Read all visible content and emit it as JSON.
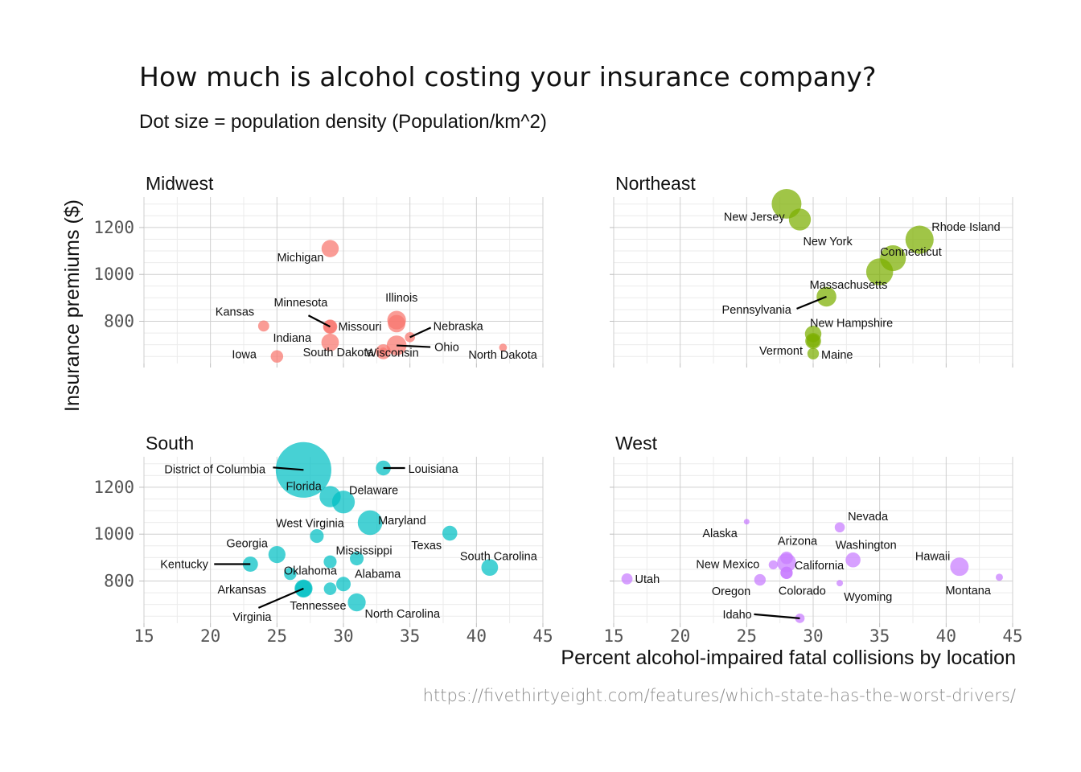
{
  "title": "How much is alcohol costing your insurance company?",
  "subtitle": "Dot size = population density (Population/km^2)",
  "caption": "https://fivethirtyeight.com/features/which-state-has-the-worst-drivers/",
  "chart_data": {
    "type": "scatter",
    "xlabel": "Percent alcohol-impaired fatal collisions by location",
    "ylabel": "Insurance premiums ($)",
    "xlim": [
      15,
      45
    ],
    "ylim": [
      620,
      1330
    ],
    "xticks": [
      15,
      20,
      25,
      30,
      35,
      40,
      45
    ],
    "yticks": [
      800,
      1000,
      1200
    ],
    "grid": true,
    "facets": [
      {
        "name": "Midwest",
        "color": "#F8766D",
        "points": [
          {
            "label": "Michigan",
            "x": 29,
            "y": 1110,
            "density": 67
          },
          {
            "label": "Kansas",
            "x": 24,
            "y": 780,
            "density": 14
          },
          {
            "label": "Indiana",
            "x": 29,
            "y": 710,
            "density": 71
          },
          {
            "label": "Minnesota",
            "x": 29,
            "y": 777,
            "density": 26
          },
          {
            "label": "Missouri",
            "x": 29,
            "y": 777,
            "density": 34
          },
          {
            "label": "Illinois",
            "x": 34,
            "y": 805,
            "density": 89
          },
          {
            "label": "Nebraska",
            "x": 35,
            "y": 732,
            "density": 10
          },
          {
            "label": "Ohio",
            "x": 34,
            "y": 697,
            "density": 110
          },
          {
            "label": "Wisconsin",
            "x": 33,
            "y": 670,
            "density": 41
          },
          {
            "label": "Iowa",
            "x": 25,
            "y": 650,
            "density": 21
          },
          {
            "label": "South Dakota",
            "x": 33,
            "y": 672,
            "density": 4
          },
          {
            "label": "North Dakota",
            "x": 42,
            "y": 688,
            "density": 4
          },
          {
            "label": "",
            "x": 34,
            "y": 790,
            "density": 70
          }
        ]
      },
      {
        "name": "Northeast",
        "color": "#7CAE00",
        "points": [
          {
            "label": "New Jersey",
            "x": 28,
            "y": 1301,
            "density": 470
          },
          {
            "label": "New York",
            "x": 29,
            "y": 1234,
            "density": 160
          },
          {
            "label": "Rhode Island",
            "x": 38,
            "y": 1148,
            "density": 390
          },
          {
            "label": "Connecticut",
            "x": 36,
            "y": 1069,
            "density": 285
          },
          {
            "label": "Massachusetts",
            "x": 35,
            "y": 1011,
            "density": 330
          },
          {
            "label": "Pennsylvania",
            "x": 31,
            "y": 905,
            "density": 110
          },
          {
            "label": "New Hampshire",
            "x": 30,
            "y": 746,
            "density": 57
          },
          {
            "label": "",
            "x": 30,
            "y": 716,
            "density": 50
          },
          {
            "label": "Vermont",
            "x": 30,
            "y": 716,
            "density": 26
          },
          {
            "label": "Maine",
            "x": 30,
            "y": 662,
            "density": 16
          }
        ]
      },
      {
        "name": "South",
        "color": "#00BFC4",
        "points": [
          {
            "label": "District of Columbia",
            "x": 27,
            "y": 1274,
            "density": 4400
          },
          {
            "label": "Louisiana",
            "x": 33,
            "y": 1282,
            "density": 40
          },
          {
            "label": "Florida",
            "x": 29,
            "y": 1160,
            "density": 140
          },
          {
            "label": "Delaware",
            "x": 30,
            "y": 1137,
            "density": 180
          },
          {
            "label": "Maryland",
            "x": 32,
            "y": 1049,
            "density": 240
          },
          {
            "label": "West Virginia",
            "x": 28,
            "y": 992,
            "density": 30
          },
          {
            "label": "Texas",
            "x": 38,
            "y": 1004,
            "density": 40
          },
          {
            "label": "Georgia",
            "x": 25,
            "y": 913,
            "density": 65
          },
          {
            "label": "Mississippi",
            "x": 29,
            "y": 882,
            "density": 24
          },
          {
            "label": "",
            "x": 31,
            "y": 896,
            "density": 30
          },
          {
            "label": "South Carolina",
            "x": 41,
            "y": 858,
            "density": 60
          },
          {
            "label": "Kentucky",
            "x": 23,
            "y": 872,
            "density": 43
          },
          {
            "label": "Oklahoma",
            "x": 26,
            "y": 831,
            "density": 21
          },
          {
            "label": "Alabama",
            "x": 30,
            "y": 787,
            "density": 36
          },
          {
            "label": "Arkansas",
            "x": 29,
            "y": 767,
            "density": 22
          },
          {
            "label": "Virginia",
            "x": 27,
            "y": 768,
            "density": 79
          },
          {
            "label": "Tennessee",
            "x": 27,
            "y": 768,
            "density": 60
          },
          {
            "label": "North Carolina",
            "x": 31,
            "y": 709,
            "density": 77
          }
        ]
      },
      {
        "name": "West",
        "color": "#C77CFF",
        "points": [
          {
            "label": "Nevada",
            "x": 32,
            "y": 1029,
            "density": 10
          },
          {
            "label": "Alaska",
            "x": 25,
            "y": 1053,
            "density": 0.5
          },
          {
            "label": "Arizona",
            "x": 28,
            "y": 899,
            "density": 22
          },
          {
            "label": "Washington",
            "x": 33,
            "y": 890,
            "density": 40
          },
          {
            "label": "Hawaii",
            "x": 41,
            "y": 861,
            "density": 85
          },
          {
            "label": "New Mexico",
            "x": 27,
            "y": 869,
            "density": 7
          },
          {
            "label": "California",
            "x": 28,
            "y": 878,
            "density": 95
          },
          {
            "label": "",
            "x": 28,
            "y": 835,
            "density": 20
          },
          {
            "label": "Utah",
            "x": 16,
            "y": 809,
            "density": 14
          },
          {
            "label": "Oregon",
            "x": 26,
            "y": 805,
            "density": 16
          },
          {
            "label": "Wyoming",
            "x": 32,
            "y": 791,
            "density": 2
          },
          {
            "label": "Montana",
            "x": 44,
            "y": 816,
            "density": 3
          },
          {
            "label": "Colorado",
            "x": 28,
            "y": 835,
            "density": 19
          },
          {
            "label": "Idaho",
            "x": 29,
            "y": 641,
            "density": 8
          }
        ]
      }
    ]
  }
}
